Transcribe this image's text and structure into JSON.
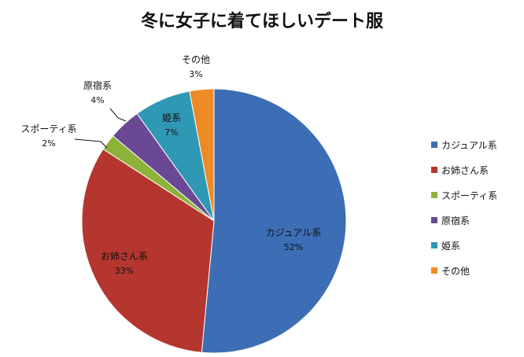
{
  "chart_data": {
    "type": "pie",
    "title": "冬に女子に着てほしいデート服",
    "categories": [
      "カジュアル系",
      "お姉さん系",
      "スポーティ系",
      "原宿系",
      "姫系",
      "その他"
    ],
    "values": [
      52,
      33,
      2,
      4,
      7,
      3
    ],
    "labels": [
      "52%",
      "33%",
      "2%",
      "4%",
      "7%",
      "3%"
    ],
    "colors": [
      "#3D6DB5",
      "#B5362F",
      "#8CB23A",
      "#6A4894",
      "#2F98B4",
      "#EE8A23"
    ],
    "start": "12 o'clock, clockwise",
    "legend": "right"
  }
}
